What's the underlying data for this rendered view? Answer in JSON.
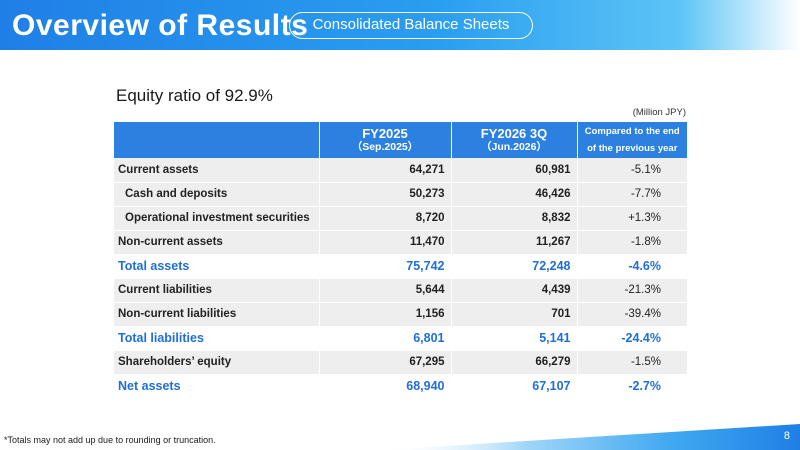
{
  "header": {
    "title": "Overview of Results",
    "section": "Consolidated Balance Sheets"
  },
  "summary": "Equity ratio of 92.9%",
  "unit_note": "(Million JPY)",
  "table": {
    "columns": [
      {
        "main": "",
        "sub": ""
      },
      {
        "main": "FY2025",
        "sub": "（Sep.2025）"
      },
      {
        "main": "FY2026 3Q",
        "sub": "（Jun.2026）"
      },
      {
        "line1": "Compared to the end",
        "line2": "of the previous year"
      }
    ],
    "rows": [
      {
        "label": "Current assets",
        "fy2025": "64,271",
        "fy2026": "60,981",
        "change": "-5.1%"
      },
      {
        "label": "Cash and deposits",
        "fy2025": "50,273",
        "fy2026": "46,426",
        "change": "-7.7%"
      },
      {
        "label": "Operational investment securities",
        "fy2025": "8,720",
        "fy2026": "8,832",
        "change": "+1.3%"
      },
      {
        "label": "Non-current assets",
        "fy2025": "11,470",
        "fy2026": "11,267",
        "change": "-1.8%"
      },
      {
        "label": "Total assets",
        "fy2025": "75,742",
        "fy2026": "72,248",
        "change": "-4.6%"
      },
      {
        "label": "Current liabilities",
        "fy2025": "5,644",
        "fy2026": "4,439",
        "change": "-21.3%"
      },
      {
        "label": "Non-current liabilities",
        "fy2025": "1,156",
        "fy2026": "701",
        "change": "-39.4%"
      },
      {
        "label": "Total liabilities",
        "fy2025": "6,801",
        "fy2026": "5,141",
        "change": "-24.4%"
      },
      {
        "label": "Shareholders’ equity",
        "fy2025": "67,295",
        "fy2026": "66,279",
        "change": "-1.5%"
      },
      {
        "label": "Net assets",
        "fy2025": "68,940",
        "fy2026": "67,107",
        "change": "-2.7%"
      }
    ]
  },
  "footnote": "*Totals may not add up due to rounding or truncation.",
  "page_number": "8",
  "colors": {
    "accent": "#2b80e0",
    "total_text": "#1f6fd6",
    "row_gray": "#eeeeee"
  }
}
